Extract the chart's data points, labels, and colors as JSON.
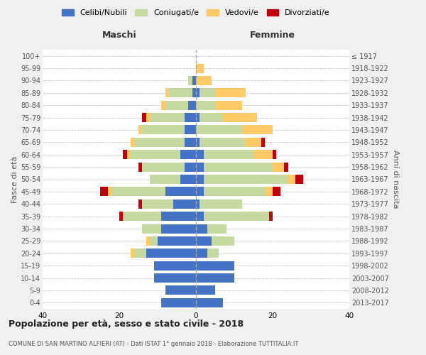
{
  "age_groups": [
    "0-4",
    "5-9",
    "10-14",
    "15-19",
    "20-24",
    "25-29",
    "30-34",
    "35-39",
    "40-44",
    "45-49",
    "50-54",
    "55-59",
    "60-64",
    "65-69",
    "70-74",
    "75-79",
    "80-84",
    "85-89",
    "90-94",
    "95-99",
    "100+"
  ],
  "birth_years": [
    "2013-2017",
    "2008-2012",
    "2003-2007",
    "1998-2002",
    "1993-1997",
    "1988-1992",
    "1983-1987",
    "1978-1982",
    "1973-1977",
    "1968-1972",
    "1963-1967",
    "1958-1962",
    "1953-1957",
    "1948-1952",
    "1943-1947",
    "1938-1942",
    "1933-1937",
    "1928-1932",
    "1923-1927",
    "1918-1922",
    "≤ 1917"
  ],
  "maschi": {
    "celibi": [
      9,
      8,
      11,
      11,
      13,
      10,
      9,
      9,
      6,
      8,
      4,
      3,
      4,
      3,
      3,
      3,
      2,
      1,
      1,
      0,
      0
    ],
    "coniugati": [
      0,
      0,
      0,
      0,
      3,
      2,
      5,
      10,
      8,
      14,
      8,
      11,
      13,
      13,
      11,
      9,
      6,
      6,
      1,
      0,
      0
    ],
    "vedovi": [
      0,
      0,
      0,
      0,
      1,
      1,
      0,
      0,
      0,
      1,
      0,
      0,
      1,
      1,
      1,
      1,
      1,
      1,
      0,
      0,
      0
    ],
    "divorziati": [
      0,
      0,
      0,
      0,
      0,
      0,
      0,
      1,
      1,
      2,
      0,
      1,
      1,
      0,
      0,
      1,
      0,
      0,
      0,
      0,
      0
    ]
  },
  "femmine": {
    "nubili": [
      7,
      5,
      10,
      10,
      3,
      4,
      3,
      2,
      1,
      2,
      2,
      2,
      2,
      1,
      0,
      1,
      0,
      1,
      0,
      0,
      0
    ],
    "coniugate": [
      0,
      0,
      0,
      0,
      3,
      6,
      5,
      17,
      11,
      16,
      22,
      18,
      13,
      12,
      12,
      6,
      5,
      4,
      0,
      0,
      0
    ],
    "vedove": [
      0,
      0,
      0,
      0,
      0,
      0,
      0,
      0,
      0,
      2,
      2,
      3,
      5,
      4,
      8,
      9,
      7,
      8,
      4,
      2,
      0
    ],
    "divorziate": [
      0,
      0,
      0,
      0,
      0,
      0,
      0,
      1,
      0,
      2,
      2,
      1,
      1,
      1,
      0,
      0,
      0,
      0,
      0,
      0,
      0
    ]
  },
  "colors": {
    "celibi_nubili": "#4472c4",
    "coniugati": "#c5d9a0",
    "vedovi": "#ffc966",
    "divorziati": "#c0000c"
  },
  "xlim": 40,
  "title": "Popolazione per età, sesso e stato civile - 2018",
  "subtitle": "COMUNE DI SAN MARTINO ALFIERI (AT) - Dati ISTAT 1° gennaio 2018 - Elaborazione TUTTITALIA.IT",
  "ylabel": "Fasce di età",
  "ylabel_right": "Anni di nascita",
  "xlabel_left": "Maschi",
  "xlabel_right": "Femmine",
  "legend_labels": [
    "Celibi/Nubili",
    "Coniugati/e",
    "Vedovi/e",
    "Divorziati/e"
  ],
  "bg_color": "#f0f0f0",
  "plot_bg_color": "#ffffff"
}
